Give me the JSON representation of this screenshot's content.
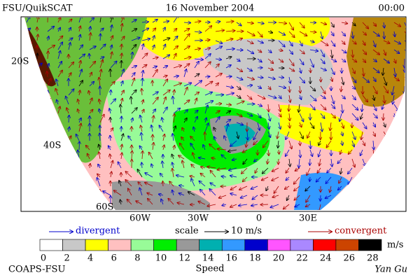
{
  "header": {
    "title": "FSU/QuikSCAT",
    "date": "16 November 2004",
    "time": "00:00"
  },
  "map": {
    "lat_labels": [
      "20S",
      "40S",
      "60S"
    ],
    "lon_labels": [
      "60W",
      "30W",
      "0",
      "30E"
    ]
  },
  "legend": {
    "divergent": "divergent",
    "scale": "scale",
    "scale_value": "10 m/s",
    "convergent": "convergent"
  },
  "colorbar": {
    "ticks": [
      0,
      2,
      4,
      6,
      8,
      10,
      12,
      14,
      16,
      18,
      20,
      22,
      24,
      26,
      28
    ],
    "unit": "m/s",
    "label": "Speed",
    "colors": [
      "#ffffff",
      "#c8c8c8",
      "#ffff00",
      "#ffc0c0",
      "#98fb98",
      "#00ee00",
      "#999999",
      "#00b0b0",
      "#3399ff",
      "#0000cc",
      "#ff55ff",
      "#aa88ff",
      "#ff0000",
      "#cc4400",
      "#000000"
    ]
  },
  "footer": {
    "left": "COAPS-FSU",
    "right": "Yan Gu"
  }
}
